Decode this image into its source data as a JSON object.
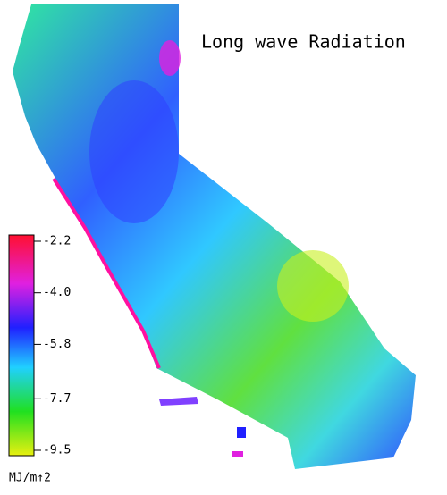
{
  "title": "Long wave Radiation",
  "colorbar": {
    "lim": [
      -9.5,
      -2.2
    ],
    "ticks": [
      -2.2,
      {
        "value": -4,
        "label": "-4.0"
      },
      -5.8,
      -7.7,
      -9.5
    ],
    "unit": "MJ/m↑2"
  }
}
